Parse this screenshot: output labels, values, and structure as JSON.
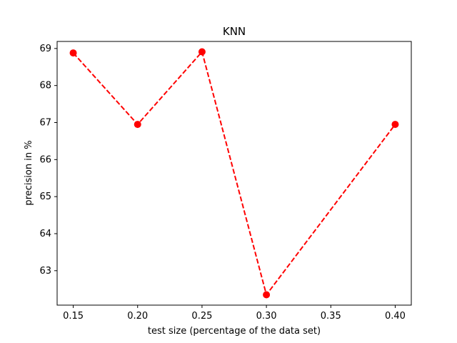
{
  "chart_data": {
    "type": "line",
    "title": "KNN",
    "xlabel": "test size (percentage of the data set)",
    "ylabel": "precision in %",
    "x": [
      0.15,
      0.2,
      0.25,
      0.3,
      0.4
    ],
    "series": [
      {
        "values": [
          68.88,
          66.95,
          68.91,
          62.35,
          66.95
        ],
        "color": "#ff0000",
        "line_style": "dashed",
        "marker": "circle"
      }
    ],
    "xlim": [
      0.1375,
      0.4125
    ],
    "ylim": [
      62.07,
      69.19
    ],
    "x_ticks": [
      0.15,
      0.2,
      0.25,
      0.3,
      0.35,
      0.4
    ],
    "x_tick_labels": [
      "0.15",
      "0.20",
      "0.25",
      "0.30",
      "0.35",
      "0.40"
    ],
    "y_ticks": [
      63,
      64,
      65,
      66,
      67,
      68,
      69
    ],
    "y_tick_labels": [
      "63",
      "64",
      "65",
      "66",
      "67",
      "68",
      "69"
    ],
    "grid": false,
    "legend": false
  }
}
